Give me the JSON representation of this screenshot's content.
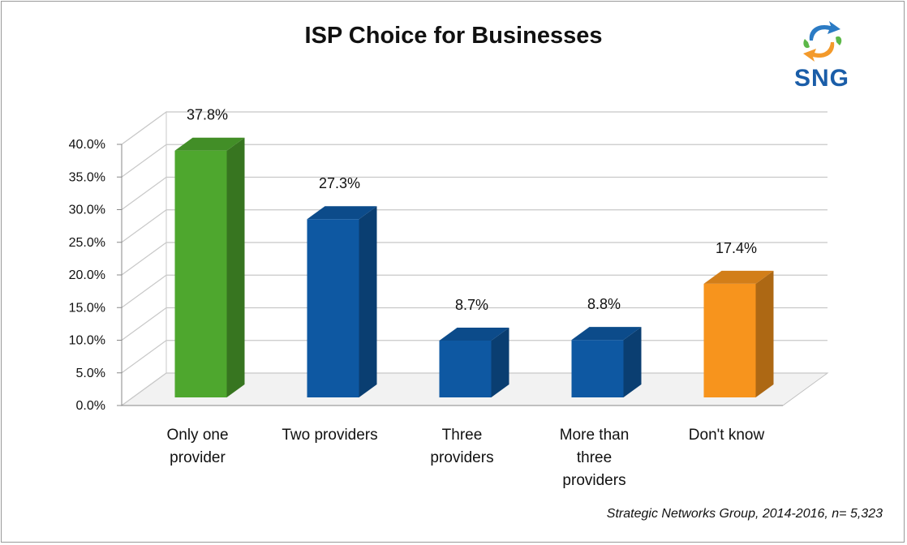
{
  "title": "ISP Choice for Businesses",
  "logo": {
    "text": "SNG",
    "icon": "sng-arrows-logo"
  },
  "source": "Strategic Networks Group, 2014-2016, n= 5,323",
  "chart_data": {
    "type": "bar",
    "title": "ISP Choice for Businesses",
    "categories": [
      [
        "Only one",
        "provider"
      ],
      [
        "Two providers"
      ],
      [
        "Three",
        "providers"
      ],
      [
        "More than",
        "three",
        "providers"
      ],
      [
        "Don't know"
      ]
    ],
    "values": [
      37.8,
      27.3,
      8.7,
      8.8,
      17.4
    ],
    "value_labels": [
      "37.8%",
      "27.3%",
      "8.7%",
      "8.8%",
      "17.4%"
    ],
    "bar_colors": [
      "#4ea72e",
      "#0e58a2",
      "#0e58a2",
      "#0e58a2",
      "#f7941d"
    ],
    "y_ticks": [
      "0.0%",
      "5.0%",
      "10.0%",
      "15.0%",
      "20.0%",
      "25.0%",
      "30.0%",
      "35.0%",
      "40.0%"
    ],
    "ylim": [
      0,
      40
    ],
    "grid": true,
    "style": "3d"
  }
}
